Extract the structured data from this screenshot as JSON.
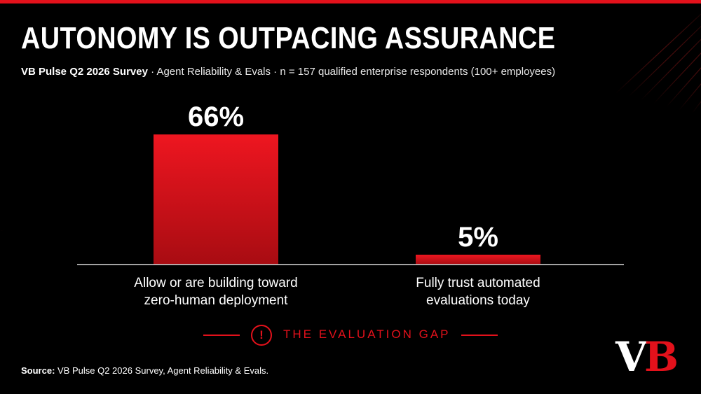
{
  "title": "AUTONOMY IS OUTPACING ASSURANCE",
  "subtitle": {
    "strong": "VB Pulse Q2 2026 Survey",
    "rest": " · Agent Reliability & Evals · n = 157 qualified enterprise respondents (100+ employees)"
  },
  "chart_data": {
    "type": "bar",
    "categories": [
      "Allow or are building toward zero-human deployment",
      "Fully trust automated evaluations today"
    ],
    "category_lines": [
      [
        "Allow or are building toward",
        "zero-human deployment"
      ],
      [
        "Fully trust automated",
        "evaluations today"
      ]
    ],
    "values": [
      66,
      5
    ],
    "value_labels": [
      "66%",
      "5%"
    ],
    "ylim": [
      0,
      100
    ],
    "grid": false,
    "legend": "none"
  },
  "callout": {
    "text": "THE EVALUATION GAP",
    "icon": "!",
    "color": "#e3111b"
  },
  "source": {
    "strong": "Source:",
    "rest": " VB Pulse Q2 2026 Survey, Agent Reliability & Evals."
  },
  "logo": {
    "v": "V",
    "b": "B"
  },
  "colors": {
    "accent": "#e3111b",
    "background": "#000000"
  }
}
